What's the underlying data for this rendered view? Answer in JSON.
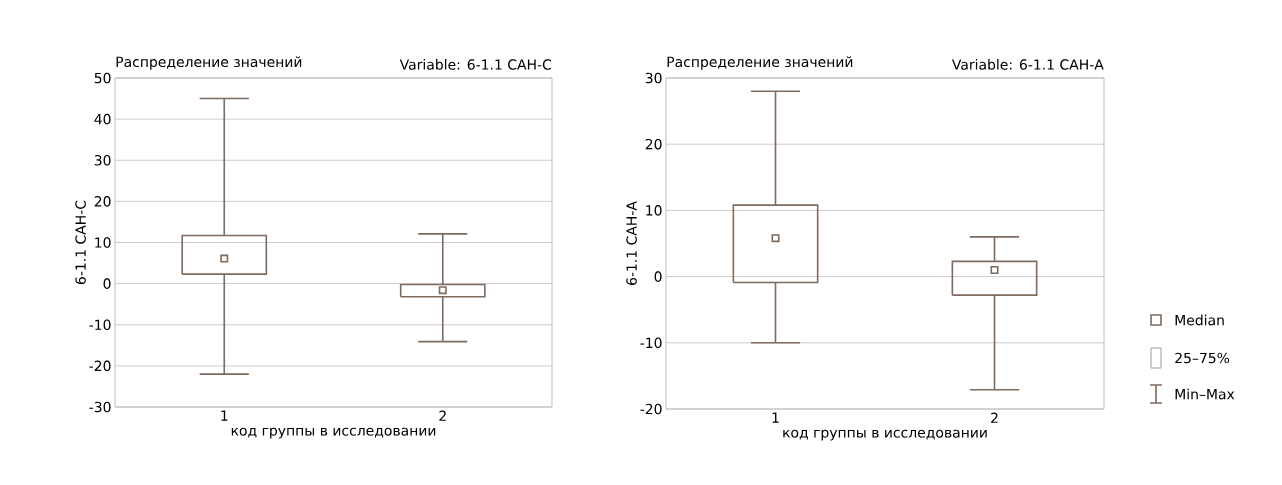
{
  "chart_data": [
    {
      "type": "box",
      "title": "Распределение значений",
      "subtitle": "Variable: 6-1.1 САН-С",
      "xlabel": "код группы в исследовании",
      "ylabel": "6-1.1 САН-С",
      "categories": [
        "1",
        "2"
      ],
      "color": "#7f6a5e",
      "marker": "square",
      "grid": "y",
      "ylim": [
        -30,
        50
      ],
      "yticks": [
        -30,
        -20,
        -10,
        0,
        10,
        20,
        30,
        40,
        50
      ],
      "boxes": [
        {
          "low": -22.0,
          "q1": 2.3,
          "median": 6.1,
          "q3": 11.7,
          "high": 45.0
        },
        {
          "low": -14.1,
          "q1": -3.2,
          "median": -1.6,
          "q3": -0.2,
          "high": 12.1
        }
      ]
    },
    {
      "type": "box",
      "title": "Распределение значений",
      "subtitle": "Variable: 6-1.1 САН-А",
      "xlabel": "код группы в исследовании",
      "ylabel": "6-1.1 САН-А",
      "categories": [
        "1",
        "2"
      ],
      "color": "#7f6a5e",
      "marker": "square",
      "grid": "y",
      "ylim": [
        -20,
        30
      ],
      "yticks": [
        -20,
        -10,
        0,
        10,
        20,
        30
      ],
      "annotations": [
        "Median",
        "25–75%",
        "Min–Max"
      ],
      "boxes": [
        {
          "low": -10.0,
          "q1": -0.9,
          "median": 5.8,
          "q3": 10.8,
          "high": 28.0
        },
        {
          "low": -17.1,
          "q1": -2.8,
          "median": 1.0,
          "q3": 2.3,
          "high": 6.0
        }
      ]
    }
  ]
}
